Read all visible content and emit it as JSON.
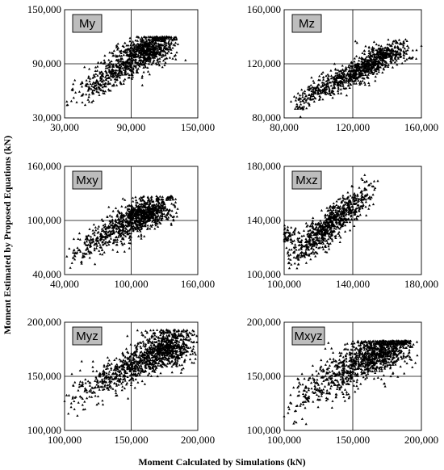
{
  "figure": {
    "xlabel": "Moment Calculated by Simulations (kN)",
    "ylabel": "Moment Estimated by Proposed Equations (kN)",
    "colors": {
      "marker": "#000000",
      "panel_label_bg": "#bdbdbd",
      "frame": "#000000"
    },
    "marker": "triangle"
  },
  "chart_data": [
    {
      "type": "scatter",
      "label": "My",
      "xlim": [
        30000,
        150000
      ],
      "ylim": [
        30000,
        150000
      ],
      "xticks": [
        "30,000",
        "90,000",
        "150,000"
      ],
      "yticks": [
        "30,000",
        "90,000",
        "150,000"
      ],
      "seed": 11,
      "n": 750,
      "x_range": [
        30000,
        134000
      ],
      "x_mode": 105000,
      "slope": 0.75,
      "intercept": 25000,
      "spread": 9000,
      "ycap": 120000,
      "clusters": [
        [
          105000,
          105000,
          12000,
          8000,
          300
        ]
      ],
      "points_sample": [
        [
          32000,
          48000
        ],
        [
          60000,
          70000
        ],
        [
          90000,
          88000
        ],
        [
          105000,
          105000
        ],
        [
          130000,
          113000
        ]
      ]
    },
    {
      "type": "scatter",
      "label": "Mz",
      "xlim": [
        80000,
        160000
      ],
      "ylim": [
        80000,
        160000
      ],
      "xticks": [
        "80,000",
        "120,000",
        "160,000"
      ],
      "yticks": [
        "80,000",
        "120,000",
        "160,000"
      ],
      "seed": 23,
      "n": 900,
      "x_range": [
        83000,
        153000
      ],
      "x_mode": 130000,
      "slope": 0.62,
      "intercept": 38000,
      "spread": 4500,
      "ycap": 138000,
      "clusters": [
        [
          140000,
          128000,
          8000,
          4000,
          120
        ]
      ],
      "points_sample": [
        [
          84000,
          92000
        ],
        [
          100000,
          100000
        ],
        [
          120000,
          112000
        ],
        [
          140000,
          125000
        ],
        [
          152000,
          130000
        ]
      ]
    },
    {
      "type": "scatter",
      "label": "Mxy",
      "xlim": [
        40000,
        160000
      ],
      "ylim": [
        40000,
        160000
      ],
      "xticks": [
        "40,000",
        "100,000",
        "160,000"
      ],
      "yticks": [
        "40,000",
        "100,000",
        "160,000"
      ],
      "seed": 37,
      "n": 750,
      "x_range": [
        40000,
        142000
      ],
      "x_mode": 110000,
      "slope": 0.65,
      "intercept": 34000,
      "spread": 9000,
      "ycap": 127000,
      "clusters": [
        [
          112000,
          108000,
          12000,
          8000,
          300
        ]
      ],
      "points_sample": [
        [
          42000,
          60000
        ],
        [
          70000,
          78000
        ],
        [
          100000,
          98000
        ],
        [
          115000,
          110000
        ],
        [
          140000,
          120000
        ]
      ]
    },
    {
      "type": "scatter",
      "label": "Mxz",
      "xlim": [
        100000,
        180000
      ],
      "ylim": [
        100000,
        180000
      ],
      "xticks": [
        "100,000",
        "140,000",
        "180,000"
      ],
      "yticks": [
        "100,000",
        "140,000",
        "180,000"
      ],
      "seed": 53,
      "n": 800,
      "x_range": [
        100000,
        155000
      ],
      "x_mode": 128000,
      "slope": 1.0,
      "intercept": 10000,
      "spread": 6500,
      "ycap": 175000,
      "clusters": [
        [
          100000,
          128000,
          3000,
          4000,
          80
        ]
      ],
      "points_sample": [
        [
          100000,
          125000
        ],
        [
          115000,
          128000
        ],
        [
          128000,
          138000
        ],
        [
          140000,
          150000
        ],
        [
          152000,
          165000
        ]
      ]
    },
    {
      "type": "scatter",
      "label": "Myz",
      "xlim": [
        100000,
        200000
      ],
      "ylim": [
        100000,
        200000
      ],
      "xticks": [
        "100,000",
        "150,000",
        "200,000"
      ],
      "yticks": [
        "100,000",
        "150,000",
        "200,000"
      ],
      "seed": 71,
      "n": 900,
      "x_range": [
        100000,
        198000
      ],
      "x_mode": 175000,
      "slope": 0.62,
      "intercept": 66000,
      "spread": 9000,
      "ycap": 193000,
      "clusters": [
        [
          178000,
          176000,
          12000,
          9000,
          300
        ]
      ],
      "points_sample": [
        [
          100000,
          127000
        ],
        [
          130000,
          148000
        ],
        [
          160000,
          165000
        ],
        [
          180000,
          178000
        ],
        [
          196000,
          188000
        ]
      ]
    },
    {
      "type": "scatter",
      "label": "Mxyz",
      "xlim": [
        100000,
        200000
      ],
      "ylim": [
        100000,
        200000
      ],
      "xticks": [
        "100,000",
        "150,000",
        "200,000"
      ],
      "yticks": [
        "100,000",
        "150,000",
        "200,000"
      ],
      "seed": 89,
      "n": 900,
      "x_range": [
        100000,
        195000
      ],
      "x_mode": 170000,
      "slope": 0.72,
      "intercept": 50000,
      "spread": 10000,
      "ycap": 183000,
      "clusters": [
        [
          170000,
          172000,
          12000,
          8000,
          300
        ]
      ],
      "points_sample": [
        [
          100000,
          113000
        ],
        [
          125000,
          142000
        ],
        [
          150000,
          160000
        ],
        [
          172000,
          172000
        ],
        [
          192000,
          178000
        ]
      ]
    }
  ]
}
